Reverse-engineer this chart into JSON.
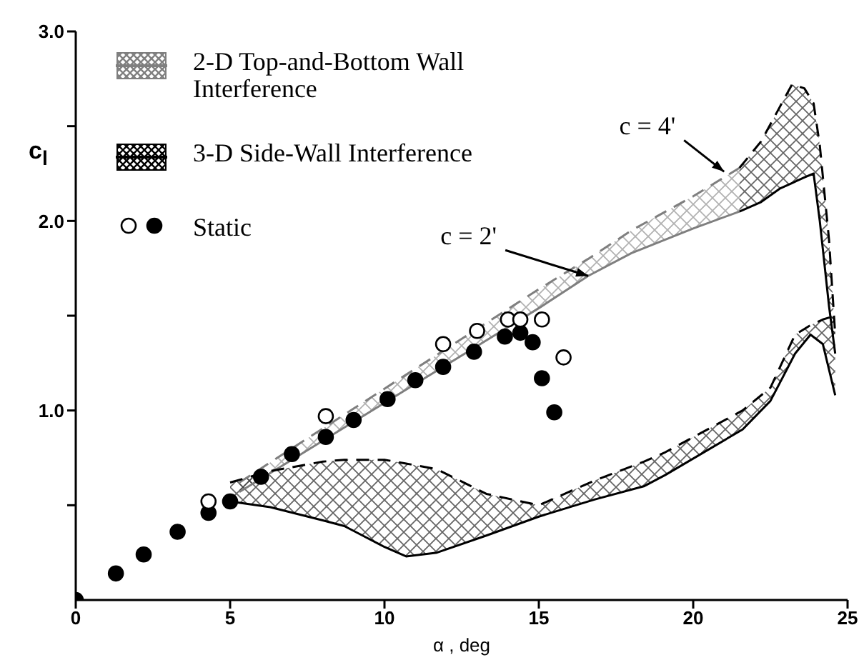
{
  "chart_data": {
    "type": "line",
    "xlabel": "α , deg",
    "ylabel": "c$_{l}$",
    "xlim": [
      0,
      25
    ],
    "ylim": [
      0,
      3
    ],
    "xticks": [
      0,
      5,
      10,
      15,
      20,
      25
    ],
    "yticks": [
      {
        "value": 0.5,
        "label": null
      },
      {
        "value": 1,
        "label": "1.0"
      },
      {
        "value": 1.5,
        "label": null
      },
      {
        "value": 2,
        "label": "2.0"
      },
      {
        "value": 2.5,
        "label": null
      },
      {
        "value": 3,
        "label": "3.0"
      }
    ],
    "legend": "top left",
    "grid": false,
    "annotations": [
      {
        "text": "c = 2'",
        "x": 16.6,
        "y": 1.71
      },
      {
        "text": "c = 4'",
        "x": 21,
        "y": 2.26
      }
    ],
    "series": [
      {
        "name": "2-D Top-and-Bottom Wall Interference",
        "type": "line",
        "color": "#7f7f7f",
        "x": [
          5.3,
          7,
          9,
          11,
          13,
          15,
          16.6,
          18,
          20,
          21.5
        ],
        "values": [
          0.57,
          0.74,
          0.94,
          1.14,
          1.34,
          1.54,
          1.71,
          1.83,
          1.96,
          2.05
        ],
        "lower": [
          0.57,
          0.74,
          0.94,
          1.14,
          1.34,
          1.54,
          1.71,
          1.83,
          1.96,
          2.05
        ],
        "upper": [
          0.62,
          0.8,
          1.01,
          1.22,
          1.43,
          1.64,
          1.8,
          1.95,
          2.13,
          2.28
        ]
      },
      {
        "type": "line",
        "color": "#7f7f7f",
        "line_style": "dashed",
        "x": [
          5.3,
          7,
          9,
          11,
          13,
          15,
          16.6,
          18,
          20,
          21.5
        ],
        "values": [
          0.62,
          0.8,
          1.01,
          1.22,
          1.43,
          1.64,
          1.8,
          1.95,
          2.13,
          2.28
        ]
      },
      {
        "name": "3-D Side-Wall Interference",
        "type": "line",
        "color": "#000000",
        "x": [
          5,
          6.3,
          8,
          8.7,
          10,
          10.7,
          11.7,
          13.3,
          15,
          16.8,
          18.4,
          19.1,
          21.6,
          22.5,
          23.3,
          23.8,
          24.2,
          24.6
        ],
        "values": [
          0.52,
          0.49,
          0.42,
          0.39,
          0.28,
          0.23,
          0.25,
          0.34,
          0.44,
          0.53,
          0.6,
          0.66,
          0.9,
          1.05,
          1.3,
          1.4,
          1.35,
          1.08
        ],
        "lower": [
          0.52,
          0.49,
          0.42,
          0.39,
          0.28,
          0.23,
          0.25,
          0.34,
          0.44,
          0.53,
          0.6,
          0.66,
          0.9,
          1.05,
          1.3,
          1.4,
          1.35,
          1.08
        ],
        "upper": [
          0.62,
          0.68,
          0.73,
          0.74,
          0.74,
          0.72,
          0.69,
          0.56,
          0.5,
          0.63,
          0.73,
          0.78,
          1.0,
          1.12,
          1.4,
          1.45,
          1.48,
          1.5
        ]
      },
      {
        "color": "#000000",
        "line_style": "dashed",
        "x": [
          5,
          6.3,
          8,
          8.7,
          10,
          10.7,
          11.7,
          13.3,
          15,
          16.8,
          18.4,
          19.1,
          21.6,
          22.5,
          23.3,
          23.8,
          24.2,
          24.6
        ],
        "values": [
          0.62,
          0.68,
          0.73,
          0.74,
          0.74,
          0.72,
          0.69,
          0.56,
          0.5,
          0.63,
          0.73,
          0.78,
          1.0,
          1.12,
          1.4,
          1.45,
          1.48,
          1.5
        ]
      },
      {
        "color": "#000000",
        "x": [
          21.5,
          22.2,
          22.8,
          23.2,
          23.6,
          23.9,
          24.1,
          24.4,
          24.6
        ],
        "values": [
          2.05,
          2.1,
          2.17,
          2.2,
          2.23,
          2.25,
          2.0,
          1.55,
          1.3
        ],
        "lower": [
          2.05,
          2.1,
          2.17,
          2.2,
          2.23,
          2.25,
          2.0,
          1.55,
          1.3
        ],
        "upper": [
          2.28,
          2.42,
          2.6,
          2.72,
          2.7,
          2.62,
          2.4,
          1.9,
          1.4
        ]
      },
      {
        "color": "#000000",
        "line_style": "dashed",
        "x": [
          21.5,
          22.2,
          22.8,
          23.2,
          23.6,
          23.9,
          24.1,
          24.4,
          24.6
        ],
        "values": [
          2.28,
          2.42,
          2.6,
          2.72,
          2.7,
          2.62,
          2.4,
          1.9,
          1.4
        ]
      },
      {
        "name": "Static",
        "type": "scatter",
        "color": "#000000",
        "x": [
          0,
          1.3,
          2.2,
          3.3,
          4.3,
          5,
          6,
          7,
          8.1,
          9,
          10.1,
          11,
          11.9,
          12.9,
          13.9,
          14.4,
          14.8,
          15.1,
          15.5
        ],
        "values": [
          0,
          0.14,
          0.24,
          0.36,
          0.46,
          0.52,
          0.65,
          0.77,
          0.86,
          0.95,
          1.06,
          1.16,
          1.23,
          1.31,
          1.39,
          1.41,
          1.36,
          1.17,
          0.99
        ]
      },
      {
        "type": "scatter",
        "color": "#ffffff",
        "x": [
          4.3,
          8.1,
          11.9,
          13,
          14,
          14.4,
          15.1,
          15.8
        ],
        "values": [
          0.52,
          0.97,
          1.35,
          1.42,
          1.48,
          1.48,
          1.48,
          1.28
        ]
      }
    ]
  }
}
